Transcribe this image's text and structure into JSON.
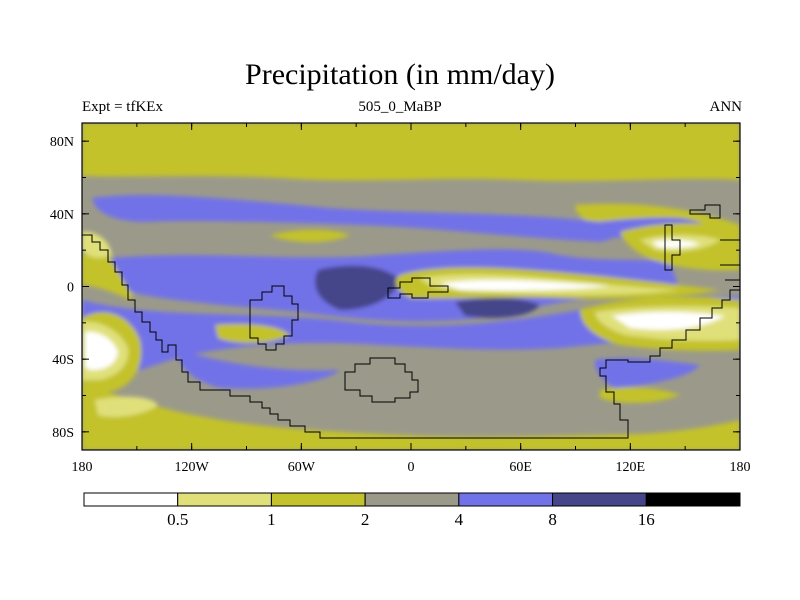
{
  "title": "Precipitation (in mm/day)",
  "subtitle_left": "Expt = tfKEx",
  "subtitle_center": "505_0_MaBP",
  "subtitle_right": "ANN",
  "x_ticks": [
    "180",
    "120W",
    "60W",
    "0",
    "60E",
    "120E",
    "180"
  ],
  "y_ticks": [
    "80N",
    "40N",
    "0",
    "40S",
    "80S"
  ],
  "colorbar": {
    "colors": [
      "#ffffff",
      "#e0e07a",
      "#c3c22c",
      "#9b9a8a",
      "#7272e8",
      "#45458a",
      "#000000"
    ],
    "labels": [
      "0.5",
      "1",
      "2",
      "4",
      "8",
      "16"
    ]
  }
}
